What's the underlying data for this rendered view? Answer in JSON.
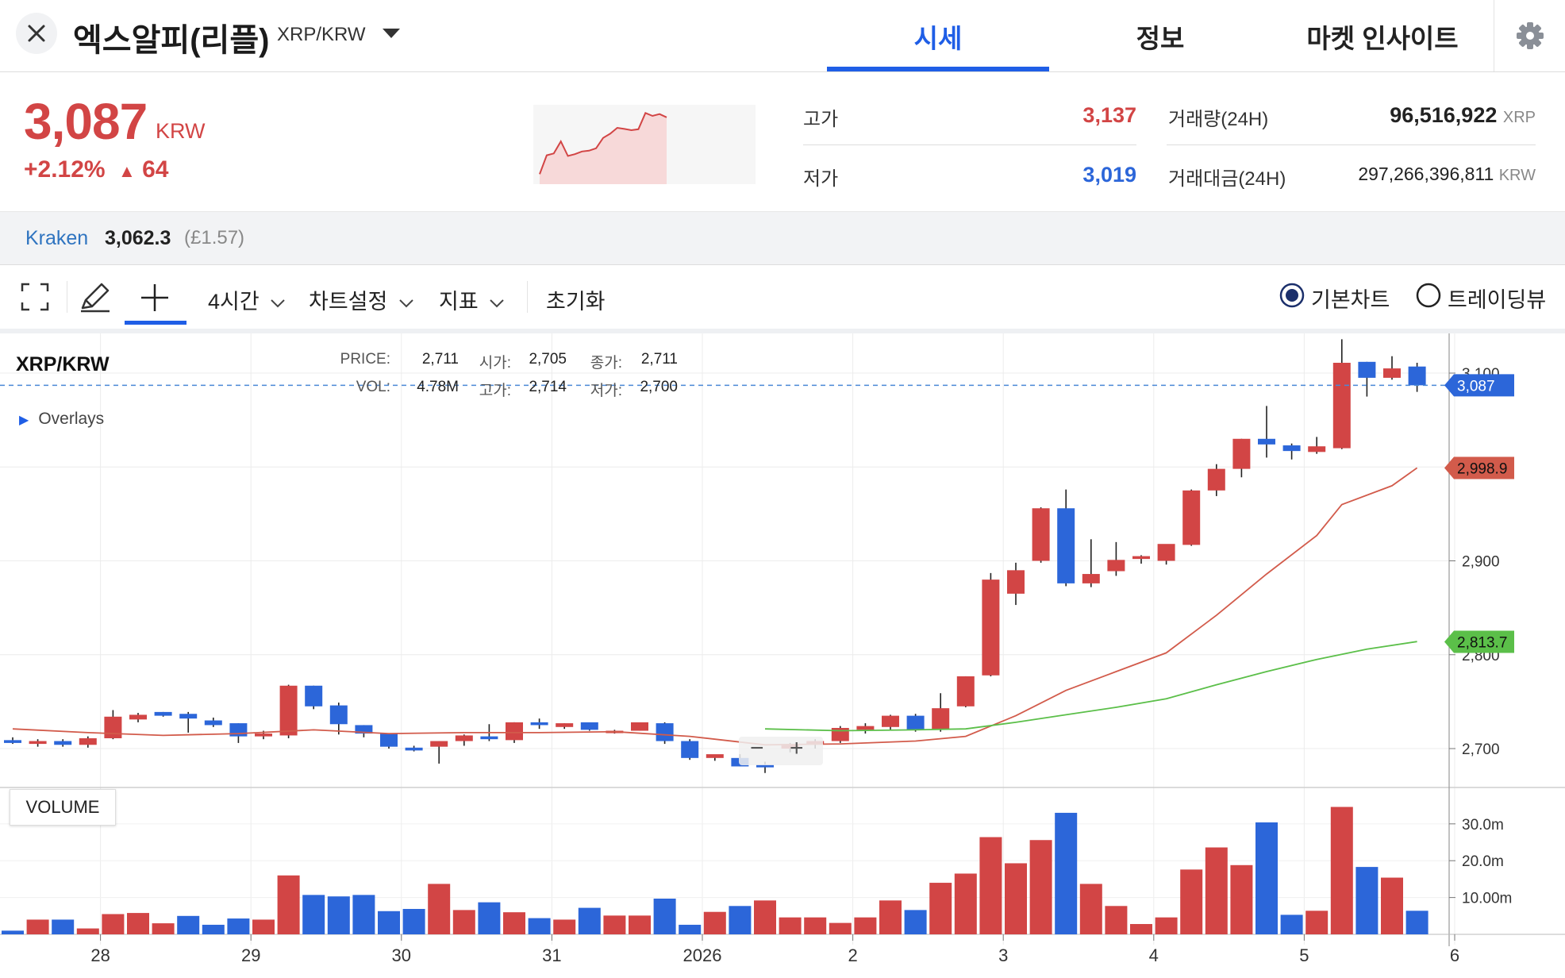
{
  "header": {
    "coin_name": "엑스알피(리플)",
    "pair": "XRP/KRW",
    "tabs": [
      {
        "label": "시세",
        "active": true
      },
      {
        "label": "정보",
        "active": false
      },
      {
        "label": "마켓 인사이트",
        "active": false
      }
    ],
    "icons": {
      "close": "close-icon",
      "dropdown": "chevron-down-icon",
      "settings": "gear-icon"
    }
  },
  "summary": {
    "price": "3,087",
    "unit": "KRW",
    "change_pct": "+2.12%",
    "change_arrow": "▲",
    "change_abs": "64",
    "high_label": "고가",
    "high": "3,137",
    "low_label": "저가",
    "low": "3,019",
    "volume_label": "거래량(24H)",
    "volume": "96,516,922",
    "volume_unit": "XRP",
    "turnover_label": "거래대금(24H)",
    "turnover": "297,266,396,811",
    "turnover_unit": "KRW"
  },
  "kraken": {
    "name": "Kraken",
    "price": "3,062.3",
    "sub": "(£1.57)"
  },
  "toolbar": {
    "interval": "4시간",
    "chart_settings": "차트설정",
    "indicators": "지표",
    "reset": "초기화",
    "mode_basic": "기본차트",
    "mode_tradingview": "트레이딩뷰",
    "selected_mode": "기본차트"
  },
  "chart_info": {
    "title": "XRP/KRW",
    "price_label": "PRICE:",
    "price": "2,711",
    "open_label": "시가:",
    "open": "2,705",
    "close_label": "종가:",
    "close": "2,711",
    "vol_label": "VOL:",
    "vol": "4.78M",
    "high_label": "고가:",
    "high": "2,714",
    "low_label": "저가:",
    "low": "2,700",
    "overlays": "Overlays",
    "volume_panel": "VOLUME",
    "current_price_tag": "3,087",
    "ma_red_tag": "2,998.9",
    "ma_green_tag": "2,813.7",
    "colors": {
      "up": "#d24545",
      "down": "#2c66d9",
      "ma_short": "#d25b4b",
      "ma_long": "#5bbf49",
      "accent": "#1f5ee6"
    }
  },
  "chart_data": {
    "type": "candlestick",
    "y_ticks": [
      "2,700",
      "2,800",
      "2,900",
      "3,000",
      "3,100"
    ],
    "ylim": [
      2670,
      3140
    ],
    "volume_ticks": [
      "10.00m",
      "20.0m",
      "30.0m"
    ],
    "volume_ylim": [
      0,
      36
    ],
    "x_ticks": [
      {
        "label": "28",
        "i": 3.5
      },
      {
        "label": "29",
        "i": 9.5
      },
      {
        "label": "30",
        "i": 15.5
      },
      {
        "label": "31",
        "i": 21.5
      },
      {
        "label": "2026",
        "i": 27.5
      },
      {
        "label": "2",
        "i": 33.5
      },
      {
        "label": "3",
        "i": 39.5
      },
      {
        "label": "4",
        "i": 45.5
      },
      {
        "label": "5",
        "i": 51.5
      },
      {
        "label": "6",
        "i": 57.5
      }
    ],
    "candles": [
      {
        "o": 2709,
        "h": 2712,
        "l": 2705,
        "c": 2706
      },
      {
        "o": 2705,
        "h": 2710,
        "l": 2702,
        "c": 2708
      },
      {
        "o": 2708,
        "h": 2710,
        "l": 2702,
        "c": 2704
      },
      {
        "o": 2704,
        "h": 2713,
        "l": 2701,
        "c": 2711
      },
      {
        "o": 2711,
        "h": 2741,
        "l": 2710,
        "c": 2734
      },
      {
        "o": 2731,
        "h": 2738,
        "l": 2728,
        "c": 2736
      },
      {
        "o": 2739,
        "h": 2739,
        "l": 2734,
        "c": 2735
      },
      {
        "o": 2737,
        "h": 2739,
        "l": 2717,
        "c": 2732
      },
      {
        "o": 2730,
        "h": 2733,
        "l": 2723,
        "c": 2725
      },
      {
        "o": 2727,
        "h": 2727,
        "l": 2706,
        "c": 2713
      },
      {
        "o": 2713,
        "h": 2719,
        "l": 2710,
        "c": 2716
      },
      {
        "o": 2714,
        "h": 2768,
        "l": 2711,
        "c": 2767
      },
      {
        "o": 2767,
        "h": 2767,
        "l": 2742,
        "c": 2745
      },
      {
        "o": 2746,
        "h": 2749,
        "l": 2715,
        "c": 2726
      },
      {
        "o": 2725,
        "h": 2725,
        "l": 2712,
        "c": 2716
      },
      {
        "o": 2716,
        "h": 2715,
        "l": 2700,
        "c": 2702
      },
      {
        "o": 2701,
        "h": 2703,
        "l": 2697,
        "c": 2698
      },
      {
        "o": 2702,
        "h": 2708,
        "l": 2684,
        "c": 2708
      },
      {
        "o": 2708,
        "h": 2715,
        "l": 2703,
        "c": 2714
      },
      {
        "o": 2713,
        "h": 2726,
        "l": 2708,
        "c": 2710
      },
      {
        "o": 2709,
        "h": 2728,
        "l": 2706,
        "c": 2728
      },
      {
        "o": 2728,
        "h": 2732,
        "l": 2721,
        "c": 2725
      },
      {
        "o": 2723,
        "h": 2727,
        "l": 2721,
        "c": 2727
      },
      {
        "o": 2728,
        "h": 2727,
        "l": 2719,
        "c": 2720
      },
      {
        "o": 2718,
        "h": 2720,
        "l": 2716,
        "c": 2719
      },
      {
        "o": 2719,
        "h": 2727,
        "l": 2719,
        "c": 2728
      },
      {
        "o": 2727,
        "h": 2728,
        "l": 2705,
        "c": 2708
      },
      {
        "o": 2708,
        "h": 2710,
        "l": 2688,
        "c": 2690
      },
      {
        "o": 2690,
        "h": 2693,
        "l": 2687,
        "c": 2694
      },
      {
        "o": 2690,
        "h": 2694,
        "l": 2681,
        "c": 2681
      },
      {
        "o": 2683,
        "h": 2686,
        "l": 2674,
        "c": 2680
      },
      {
        "o": 2700,
        "h": 2706,
        "l": 2696,
        "c": 2705
      },
      {
        "o": 2705,
        "h": 2710,
        "l": 2700,
        "c": 2708
      },
      {
        "o": 2708,
        "h": 2724,
        "l": 2706,
        "c": 2722
      },
      {
        "o": 2720,
        "h": 2727,
        "l": 2716,
        "c": 2724
      },
      {
        "o": 2723,
        "h": 2736,
        "l": 2720,
        "c": 2735
      },
      {
        "o": 2735,
        "h": 2737,
        "l": 2718,
        "c": 2720
      },
      {
        "o": 2720,
        "h": 2759,
        "l": 2718,
        "c": 2743
      },
      {
        "o": 2745,
        "h": 2777,
        "l": 2744,
        "c": 2777
      },
      {
        "o": 2778,
        "h": 2887,
        "l": 2777,
        "c": 2880
      },
      {
        "o": 2865,
        "h": 2898,
        "l": 2853,
        "c": 2890
      },
      {
        "o": 2900,
        "h": 2957,
        "l": 2898,
        "c": 2956
      },
      {
        "o": 2956,
        "h": 2976,
        "l": 2873,
        "c": 2876
      },
      {
        "o": 2876,
        "h": 2923,
        "l": 2872,
        "c": 2886
      },
      {
        "o": 2889,
        "h": 2920,
        "l": 2884,
        "c": 2901
      },
      {
        "o": 2902,
        "h": 2906,
        "l": 2897,
        "c": 2905
      },
      {
        "o": 2900,
        "h": 2914,
        "l": 2896,
        "c": 2918
      },
      {
        "o": 2917,
        "h": 2976,
        "l": 2916,
        "c": 2975
      },
      {
        "o": 2975,
        "h": 3003,
        "l": 2969,
        "c": 2998
      },
      {
        "o": 2998,
        "h": 3030,
        "l": 2989,
        "c": 3030
      },
      {
        "o": 3030,
        "h": 3065,
        "l": 3010,
        "c": 3024
      },
      {
        "o": 3023,
        "h": 3025,
        "l": 3008,
        "c": 3017
      },
      {
        "o": 3016,
        "h": 3032,
        "l": 3014,
        "c": 3022
      },
      {
        "o": 3020,
        "h": 3136,
        "l": 3019,
        "c": 3111
      },
      {
        "o": 3112,
        "h": 3112,
        "l": 3075,
        "c": 3095
      },
      {
        "o": 3095,
        "h": 3118,
        "l": 3093,
        "c": 3105
      },
      {
        "o": 3107,
        "h": 3111,
        "l": 3080,
        "c": 3087
      }
    ],
    "volume": [
      {
        "v": 1.0,
        "dir": "down"
      },
      {
        "v": 4.0,
        "dir": "up"
      },
      {
        "v": 4.0,
        "dir": "down"
      },
      {
        "v": 1.6,
        "dir": "up"
      },
      {
        "v": 5.5,
        "dir": "up"
      },
      {
        "v": 5.8,
        "dir": "up"
      },
      {
        "v": 3.0,
        "dir": "up"
      },
      {
        "v": 5.0,
        "dir": "down"
      },
      {
        "v": 2.6,
        "dir": "down"
      },
      {
        "v": 4.3,
        "dir": "down"
      },
      {
        "v": 4.0,
        "dir": "up"
      },
      {
        "v": 16.0,
        "dir": "up"
      },
      {
        "v": 10.7,
        "dir": "down"
      },
      {
        "v": 10.3,
        "dir": "down"
      },
      {
        "v": 10.7,
        "dir": "down"
      },
      {
        "v": 6.3,
        "dir": "down"
      },
      {
        "v": 6.9,
        "dir": "down"
      },
      {
        "v": 13.7,
        "dir": "up"
      },
      {
        "v": 6.6,
        "dir": "up"
      },
      {
        "v": 8.7,
        "dir": "down"
      },
      {
        "v": 6.0,
        "dir": "up"
      },
      {
        "v": 4.4,
        "dir": "down"
      },
      {
        "v": 4.0,
        "dir": "up"
      },
      {
        "v": 7.2,
        "dir": "down"
      },
      {
        "v": 5.1,
        "dir": "up"
      },
      {
        "v": 5.1,
        "dir": "up"
      },
      {
        "v": 9.7,
        "dir": "down"
      },
      {
        "v": 2.6,
        "dir": "down"
      },
      {
        "v": 6.1,
        "dir": "up"
      },
      {
        "v": 7.7,
        "dir": "down"
      },
      {
        "v": 9.2,
        "dir": "up"
      },
      {
        "v": 4.6,
        "dir": "up"
      },
      {
        "v": 4.6,
        "dir": "up"
      },
      {
        "v": 3.1,
        "dir": "up"
      },
      {
        "v": 4.6,
        "dir": "up"
      },
      {
        "v": 9.2,
        "dir": "up"
      },
      {
        "v": 6.6,
        "dir": "down"
      },
      {
        "v": 14.0,
        "dir": "up"
      },
      {
        "v": 16.5,
        "dir": "up"
      },
      {
        "v": 26.4,
        "dir": "up"
      },
      {
        "v": 19.3,
        "dir": "up"
      },
      {
        "v": 25.6,
        "dir": "up"
      },
      {
        "v": 33.0,
        "dir": "down"
      },
      {
        "v": 13.7,
        "dir": "up"
      },
      {
        "v": 7.7,
        "dir": "up"
      },
      {
        "v": 2.8,
        "dir": "up"
      },
      {
        "v": 4.6,
        "dir": "up"
      },
      {
        "v": 17.6,
        "dir": "up"
      },
      {
        "v": 23.6,
        "dir": "up"
      },
      {
        "v": 18.8,
        "dir": "up"
      },
      {
        "v": 30.4,
        "dir": "down"
      },
      {
        "v": 5.3,
        "dir": "down"
      },
      {
        "v": 6.4,
        "dir": "up"
      },
      {
        "v": 34.6,
        "dir": "up"
      },
      {
        "v": 18.3,
        "dir": "down"
      },
      {
        "v": 15.4,
        "dir": "up"
      },
      {
        "v": 6.4,
        "dir": "down"
      }
    ],
    "ma_short": [
      [
        0,
        2721
      ],
      [
        3,
        2717
      ],
      [
        6,
        2714
      ],
      [
        9,
        2716
      ],
      [
        12,
        2720
      ],
      [
        15,
        2716
      ],
      [
        18,
        2717
      ],
      [
        21,
        2717
      ],
      [
        24,
        2718
      ],
      [
        27,
        2713
      ],
      [
        30,
        2704
      ],
      [
        33,
        2705
      ],
      [
        36,
        2708
      ],
      [
        38,
        2713
      ],
      [
        40,
        2735
      ],
      [
        42,
        2762
      ],
      [
        44,
        2782
      ],
      [
        46,
        2802
      ],
      [
        48,
        2842
      ],
      [
        50,
        2886
      ],
      [
        52,
        2927
      ],
      [
        53,
        2960
      ],
      [
        55,
        2980
      ],
      [
        56,
        2999
      ]
    ],
    "ma_long": [
      [
        30,
        2721
      ],
      [
        33,
        2719
      ],
      [
        36,
        2720
      ],
      [
        38,
        2721
      ],
      [
        40,
        2728
      ],
      [
        42,
        2736
      ],
      [
        44,
        2744
      ],
      [
        46,
        2753
      ],
      [
        48,
        2768
      ],
      [
        50,
        2782
      ],
      [
        52,
        2795
      ],
      [
        54,
        2806
      ],
      [
        56,
        2814
      ]
    ]
  }
}
